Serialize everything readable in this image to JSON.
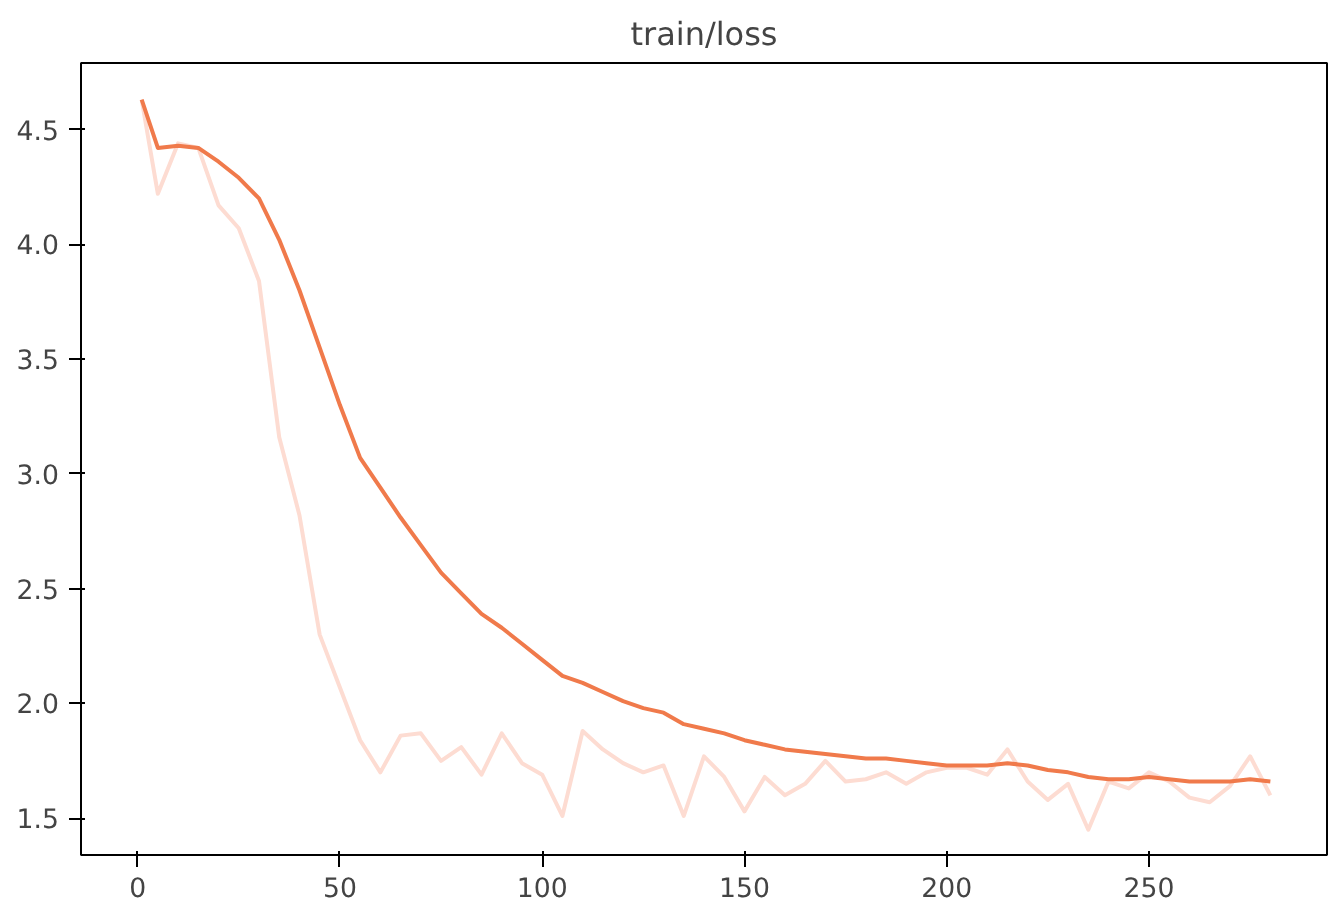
{
  "chart_data": {
    "type": "line",
    "title": "train/loss",
    "x": [
      1,
      5,
      10,
      15,
      20,
      25,
      30,
      35,
      40,
      45,
      50,
      55,
      60,
      65,
      70,
      75,
      80,
      85,
      90,
      95,
      100,
      105,
      110,
      115,
      120,
      125,
      130,
      135,
      140,
      145,
      150,
      155,
      160,
      165,
      170,
      175,
      180,
      185,
      190,
      195,
      200,
      205,
      210,
      215,
      220,
      225,
      230,
      235,
      240,
      245,
      250,
      255,
      260,
      265,
      270,
      275,
      280
    ],
    "series": [
      {
        "color": "#fddcd2",
        "values": [
          4.63,
          4.22,
          4.44,
          4.42,
          4.17,
          4.07,
          3.84,
          3.16,
          2.82,
          2.3,
          2.07,
          1.84,
          1.7,
          1.86,
          1.87,
          1.75,
          1.81,
          1.69,
          1.87,
          1.74,
          1.69,
          1.51,
          1.88,
          1.8,
          1.74,
          1.7,
          1.73,
          1.51,
          1.77,
          1.68,
          1.53,
          1.68,
          1.6,
          1.65,
          1.75,
          1.66,
          1.67,
          1.7,
          1.65,
          1.7,
          1.72,
          1.72,
          1.69,
          1.8,
          1.66,
          1.58,
          1.65,
          1.45,
          1.66,
          1.63,
          1.7,
          1.66,
          1.59,
          1.57,
          1.64,
          1.77,
          1.6
        ]
      },
      {
        "color": "#f07a4b",
        "values": [
          4.63,
          4.42,
          4.43,
          4.42,
          4.36,
          4.29,
          4.2,
          4.02,
          3.8,
          3.55,
          3.3,
          3.07,
          2.94,
          2.81,
          2.69,
          2.57,
          2.48,
          2.39,
          2.33,
          2.26,
          2.19,
          2.12,
          2.09,
          2.05,
          2.01,
          1.98,
          1.96,
          1.91,
          1.89,
          1.87,
          1.84,
          1.82,
          1.8,
          1.79,
          1.78,
          1.77,
          1.76,
          1.76,
          1.75,
          1.74,
          1.73,
          1.73,
          1.73,
          1.74,
          1.73,
          1.71,
          1.7,
          1.68,
          1.67,
          1.67,
          1.68,
          1.67,
          1.66,
          1.66,
          1.66,
          1.67,
          1.66
        ]
      }
    ],
    "xlim": [
      -14,
      294
    ],
    "ylim": [
      1.34,
      4.79
    ],
    "xticks": [
      0,
      50,
      100,
      150,
      200,
      250
    ],
    "yticks": [
      1.5,
      {
        "value": 2,
        "label": "2.0"
      },
      2.5,
      {
        "value": 3,
        "label": "3.0"
      },
      3.5,
      {
        "value": 4,
        "label": "4.0"
      },
      4.5
    ],
    "grid": false,
    "marker": "none",
    "line_style": "solid"
  }
}
